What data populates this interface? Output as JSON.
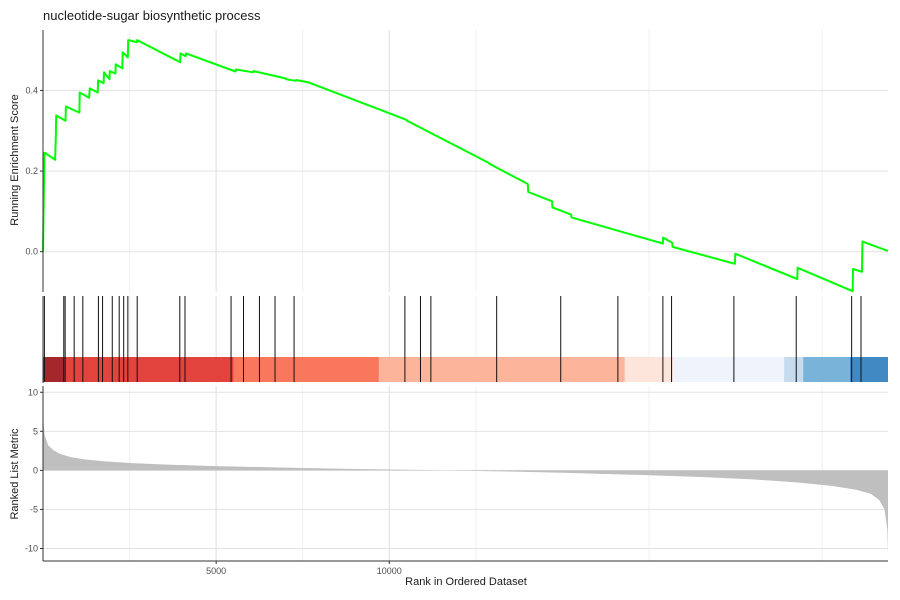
{
  "chart_data": {
    "type": "line",
    "title": "nucleotide-sugar biosynthetic process",
    "panels": {
      "enrichment": {
        "ylabel": "Running Enrichment Score",
        "yticks": [
          0.0,
          0.2,
          0.4
        ],
        "ytick_labels": [
          "0.0",
          "0.2",
          "0.4"
        ],
        "ylim": [
          -0.1,
          0.55
        ],
        "line_color": "#00ff00",
        "series": [
          {
            "x": [
              0,
              40,
              50,
              60,
              350,
              370,
              380,
              650,
              660,
              670,
              1050,
              1060,
              1330,
              1350,
              1580,
              1590,
              1750,
              1760,
              1920,
              1930,
              2090,
              2100,
              2290,
              2300,
              2450,
              2460,
              2710,
              2720,
              3960,
              3970,
              4120,
              4130,
              5560,
              5570,
              6070,
              6080,
              7000,
              7010,
              7300,
              7310,
              7660,
              7670,
              10500,
              10510,
              12880,
              12890,
              14000,
              14010,
              14700,
              14710,
              15250,
              15260,
              17900,
              17910,
              18170,
              18180,
              19980,
              19990,
              21780,
              21790,
              23380,
              23390,
              23650,
              23660,
              24400
            ],
            "y": [
              0.0,
              0.245,
              0.245,
              0.245,
              0.228,
              0.283,
              0.338,
              0.325,
              0.36,
              0.36,
              0.345,
              0.395,
              0.382,
              0.405,
              0.395,
              0.425,
              0.418,
              0.445,
              0.428,
              0.448,
              0.442,
              0.465,
              0.455,
              0.495,
              0.482,
              0.525,
              0.52,
              0.525,
              0.47,
              0.492,
              0.485,
              0.492,
              0.447,
              0.452,
              0.445,
              0.448,
              0.43,
              0.428,
              0.424,
              0.426,
              0.42,
              0.42,
              0.327,
              0.325,
              0.22,
              0.218,
              0.168,
              0.148,
              0.125,
              0.11,
              0.092,
              0.085,
              0.02,
              0.035,
              0.022,
              0.012,
              -0.03,
              -0.005,
              -0.068,
              -0.04,
              -0.098,
              -0.043,
              -0.05,
              0.025,
              0.002
            ]
          }
        ]
      },
      "hits": {
        "positions": [
          40,
          600,
          640,
          900,
          1150,
          1600,
          1720,
          2000,
          2200,
          2330,
          2450,
          2720,
          3950,
          4100,
          5430,
          5790,
          6250,
          6700,
          7250,
          10450,
          10900,
          11200,
          13100,
          14950,
          16600,
          17900,
          18150,
          19950,
          21750,
          23350,
          23620
        ]
      },
      "colorbar": {
        "segments": [
          {
            "from": 0,
            "to": 600,
            "color": "#a5262b"
          },
          {
            "from": 600,
            "to": 5500,
            "color": "#e2433d"
          },
          {
            "from": 5500,
            "to": 9700,
            "color": "#f9785d"
          },
          {
            "from": 9700,
            "to": 16800,
            "color": "#fcb49b"
          },
          {
            "from": 16800,
            "to": 18200,
            "color": "#fde5dc"
          },
          {
            "from": 18200,
            "to": 21400,
            "color": "#eef3fc"
          },
          {
            "from": 21400,
            "to": 21950,
            "color": "#c6dbee"
          },
          {
            "from": 21950,
            "to": 23300,
            "color": "#7ab3d9"
          },
          {
            "from": 23300,
            "to": 24400,
            "color": "#4189c3"
          }
        ]
      },
      "ranked": {
        "ylabel": "Ranked List Metric",
        "yticks": [
          10,
          5,
          0,
          -5,
          -10
        ],
        "ytick_labels": [
          "10",
          "5",
          "0",
          "-5",
          "-10"
        ],
        "ylim": [
          -11.6,
          10.8
        ],
        "fill_color": "#bfbfbf",
        "series": [
          {
            "x": [
              0,
              10,
              50,
              150,
              300,
              500,
              800,
              1200,
              1800,
              2500,
              3500,
              5000,
              7000,
              9000,
              11000,
              13000,
              15000,
              17000,
              19000,
              20500,
              21800,
              22800,
              23500,
              23900,
              24150,
              24300,
              24380,
              24400
            ],
            "y": [
              9.5,
              6.5,
              4.5,
              3.2,
              2.6,
              2.1,
              1.7,
              1.4,
              1.15,
              0.95,
              0.75,
              0.55,
              0.35,
              0.18,
              0.05,
              -0.1,
              -0.3,
              -0.55,
              -0.85,
              -1.15,
              -1.55,
              -2.0,
              -2.5,
              -3.0,
              -3.8,
              -5.0,
              -7.5,
              -10.8
            ]
          }
        ]
      }
    },
    "xaxis": {
      "xlabel": "Rank in Ordered Dataset",
      "xticks": [
        5000,
        10000
      ],
      "xtick_labels": [
        "5000",
        "10000"
      ],
      "xlim": [
        0,
        24400
      ],
      "minor_gridlines": [
        2500,
        7500,
        12500,
        17500,
        22500
      ]
    },
    "grid": true
  }
}
